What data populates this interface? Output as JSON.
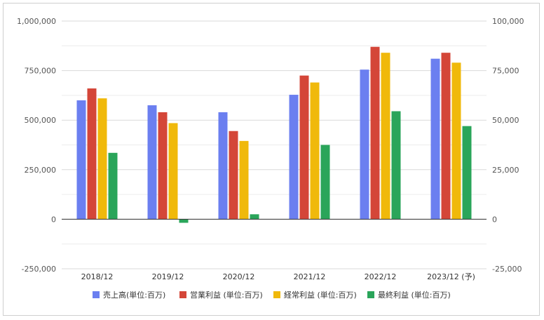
{
  "chart_data": {
    "type": "bar",
    "title": "",
    "xlabel": "",
    "ylabel": "",
    "categories": [
      "2018/12",
      "2019/12",
      "2020/12",
      "2021/12",
      "2022/12",
      "2023/12 (予)"
    ],
    "series": [
      {
        "name": "売上高(単位:百万)",
        "color": "#6b7ff0",
        "axis": "left",
        "values": [
          600000,
          575000,
          540000,
          628000,
          755000,
          810000
        ]
      },
      {
        "name": "営業利益 (単位:百万)",
        "color": "#d44638",
        "axis": "right",
        "values": [
          66000,
          54000,
          44500,
          72500,
          87000,
          84000
        ]
      },
      {
        "name": "経常利益 (単位:百万)",
        "color": "#f0b90b",
        "axis": "right",
        "values": [
          61000,
          48500,
          39500,
          69000,
          84000,
          79000
        ]
      },
      {
        "name": "最終利益 (単位:百万)",
        "color": "#2aa55a",
        "axis": "right",
        "values": [
          33500,
          -1800,
          2500,
          37500,
          54500,
          47000
        ]
      }
    ],
    "left_axis": {
      "ylim": [
        -250000,
        1000000
      ],
      "ticks": [
        "-250,000",
        "0",
        "250,000",
        "500,000",
        "750,000",
        "1,000,000"
      ]
    },
    "right_axis": {
      "ylim": [
        -25000,
        100000
      ],
      "ticks": [
        "-25,000",
        "0",
        "25,000",
        "50,000",
        "75,000",
        "100,000"
      ]
    },
    "grid": true,
    "legend_position": "bottom"
  }
}
